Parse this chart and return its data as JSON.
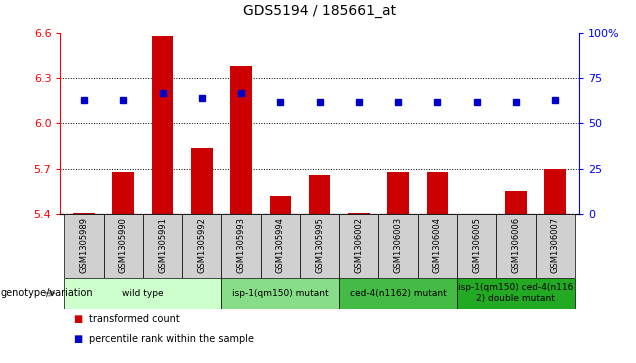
{
  "title": "GDS5194 / 185661_at",
  "samples": [
    "GSM1305989",
    "GSM1305990",
    "GSM1305991",
    "GSM1305992",
    "GSM1305993",
    "GSM1305994",
    "GSM1305995",
    "GSM1306002",
    "GSM1306003",
    "GSM1306004",
    "GSM1306005",
    "GSM1306006",
    "GSM1306007"
  ],
  "transformed_count": [
    5.41,
    5.68,
    6.58,
    5.84,
    6.38,
    5.52,
    5.66,
    5.41,
    5.68,
    5.68,
    5.39,
    5.55,
    5.7
  ],
  "percentile_rank": [
    63,
    63,
    67,
    64,
    67,
    62,
    62,
    62,
    62,
    62,
    62,
    62,
    63
  ],
  "ylim_left": [
    5.4,
    6.6
  ],
  "ylim_right": [
    0,
    100
  ],
  "yticks_left": [
    5.4,
    5.7,
    6.0,
    6.3,
    6.6
  ],
  "yticks_right": [
    0,
    25,
    50,
    75,
    100
  ],
  "bar_color": "#cc0000",
  "dot_color": "#0000cc",
  "groups": [
    {
      "label": "wild type",
      "indices": [
        0,
        1,
        2,
        3
      ],
      "color": "#ccffcc"
    },
    {
      "label": "isp-1(qm150) mutant",
      "indices": [
        4,
        5,
        6
      ],
      "color": "#88dd88"
    },
    {
      "label": "ced-4(n1162) mutant",
      "indices": [
        7,
        8,
        9
      ],
      "color": "#44bb44"
    },
    {
      "label": "isp-1(qm150) ced-4(n116\n2) double mutant",
      "indices": [
        10,
        11,
        12
      ],
      "color": "#22aa22"
    }
  ],
  "col_bg": "#d0d0d0",
  "plot_bg": "#ffffff",
  "genotype_label": "genotype/variation",
  "legend_items": [
    {
      "label": "transformed count",
      "color": "#cc0000"
    },
    {
      "label": "percentile rank within the sample",
      "color": "#0000cc"
    }
  ]
}
